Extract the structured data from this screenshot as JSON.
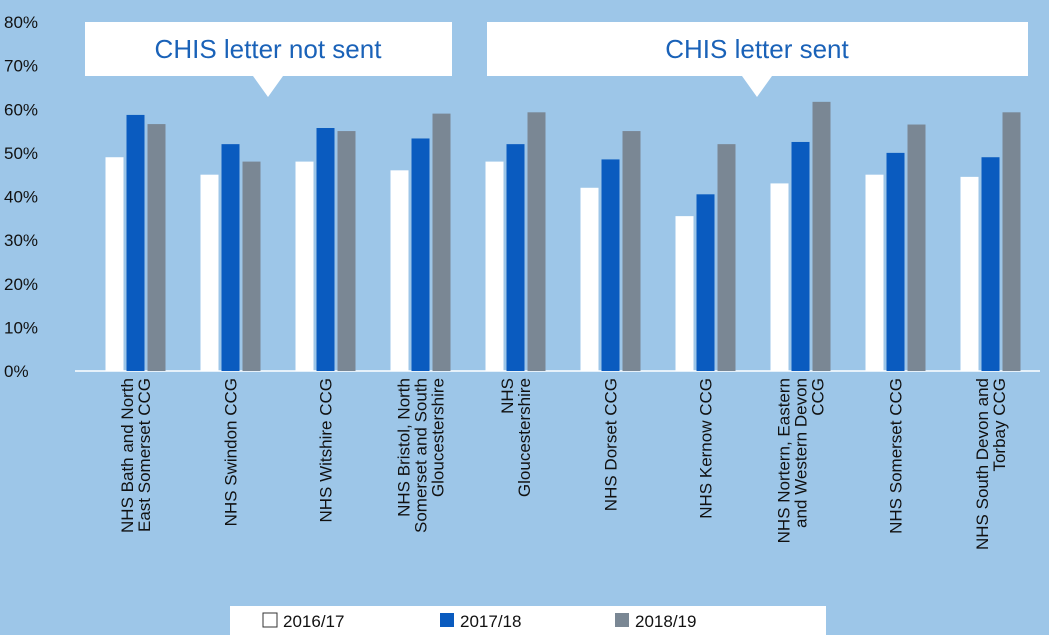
{
  "chart_data": {
    "type": "bar",
    "categories": [
      "NHS Bath and North\nEast Somerset CCG",
      "NHS Swindon CCG",
      "NHS Witshire CCG",
      "NHS Bristol, North\nSomerset and South\nGloucestershire",
      "NHS\nGloucestershire",
      "NHS Dorset CCG",
      "NHS Kernow CCG",
      "NHS Nortern, Eastern\nand Western Devon\nCCG",
      "NHS Somerset CCG",
      "NHS South Devon and\nTorbay CCG"
    ],
    "series": [
      {
        "name": "2016/17",
        "color": "#ffffff",
        "values": [
          49,
          45,
          48,
          46,
          48,
          42,
          35.5,
          43,
          45,
          44.5
        ]
      },
      {
        "name": "2017/18",
        "color": "#0a5bbf",
        "values": [
          58.7,
          52,
          55.7,
          53.3,
          52,
          48.5,
          40.5,
          52.5,
          50,
          49
        ]
      },
      {
        "name": "2018/19",
        "color": "#7a8794",
        "values": [
          56.6,
          48,
          55,
          59,
          59.3,
          55,
          52,
          61.7,
          56.5,
          59.3
        ]
      }
    ],
    "ylim": [
      0,
      80
    ],
    "yticks": [
      {
        "value": 0,
        "label": "0%"
      },
      {
        "value": 10,
        "label": "10%"
      },
      {
        "value": 20,
        "label": "20%"
      },
      {
        "value": 30,
        "label": "30%"
      },
      {
        "value": 40,
        "label": "40%"
      },
      {
        "value": 50,
        "label": "50%"
      },
      {
        "value": 60,
        "label": "60%"
      },
      {
        "value": 70,
        "label": "70%"
      },
      {
        "value": 80,
        "label": "80%"
      }
    ],
    "annotations": [
      "CHIS letter not sent",
      "CHIS letter sent"
    ],
    "legend": "bottom"
  }
}
